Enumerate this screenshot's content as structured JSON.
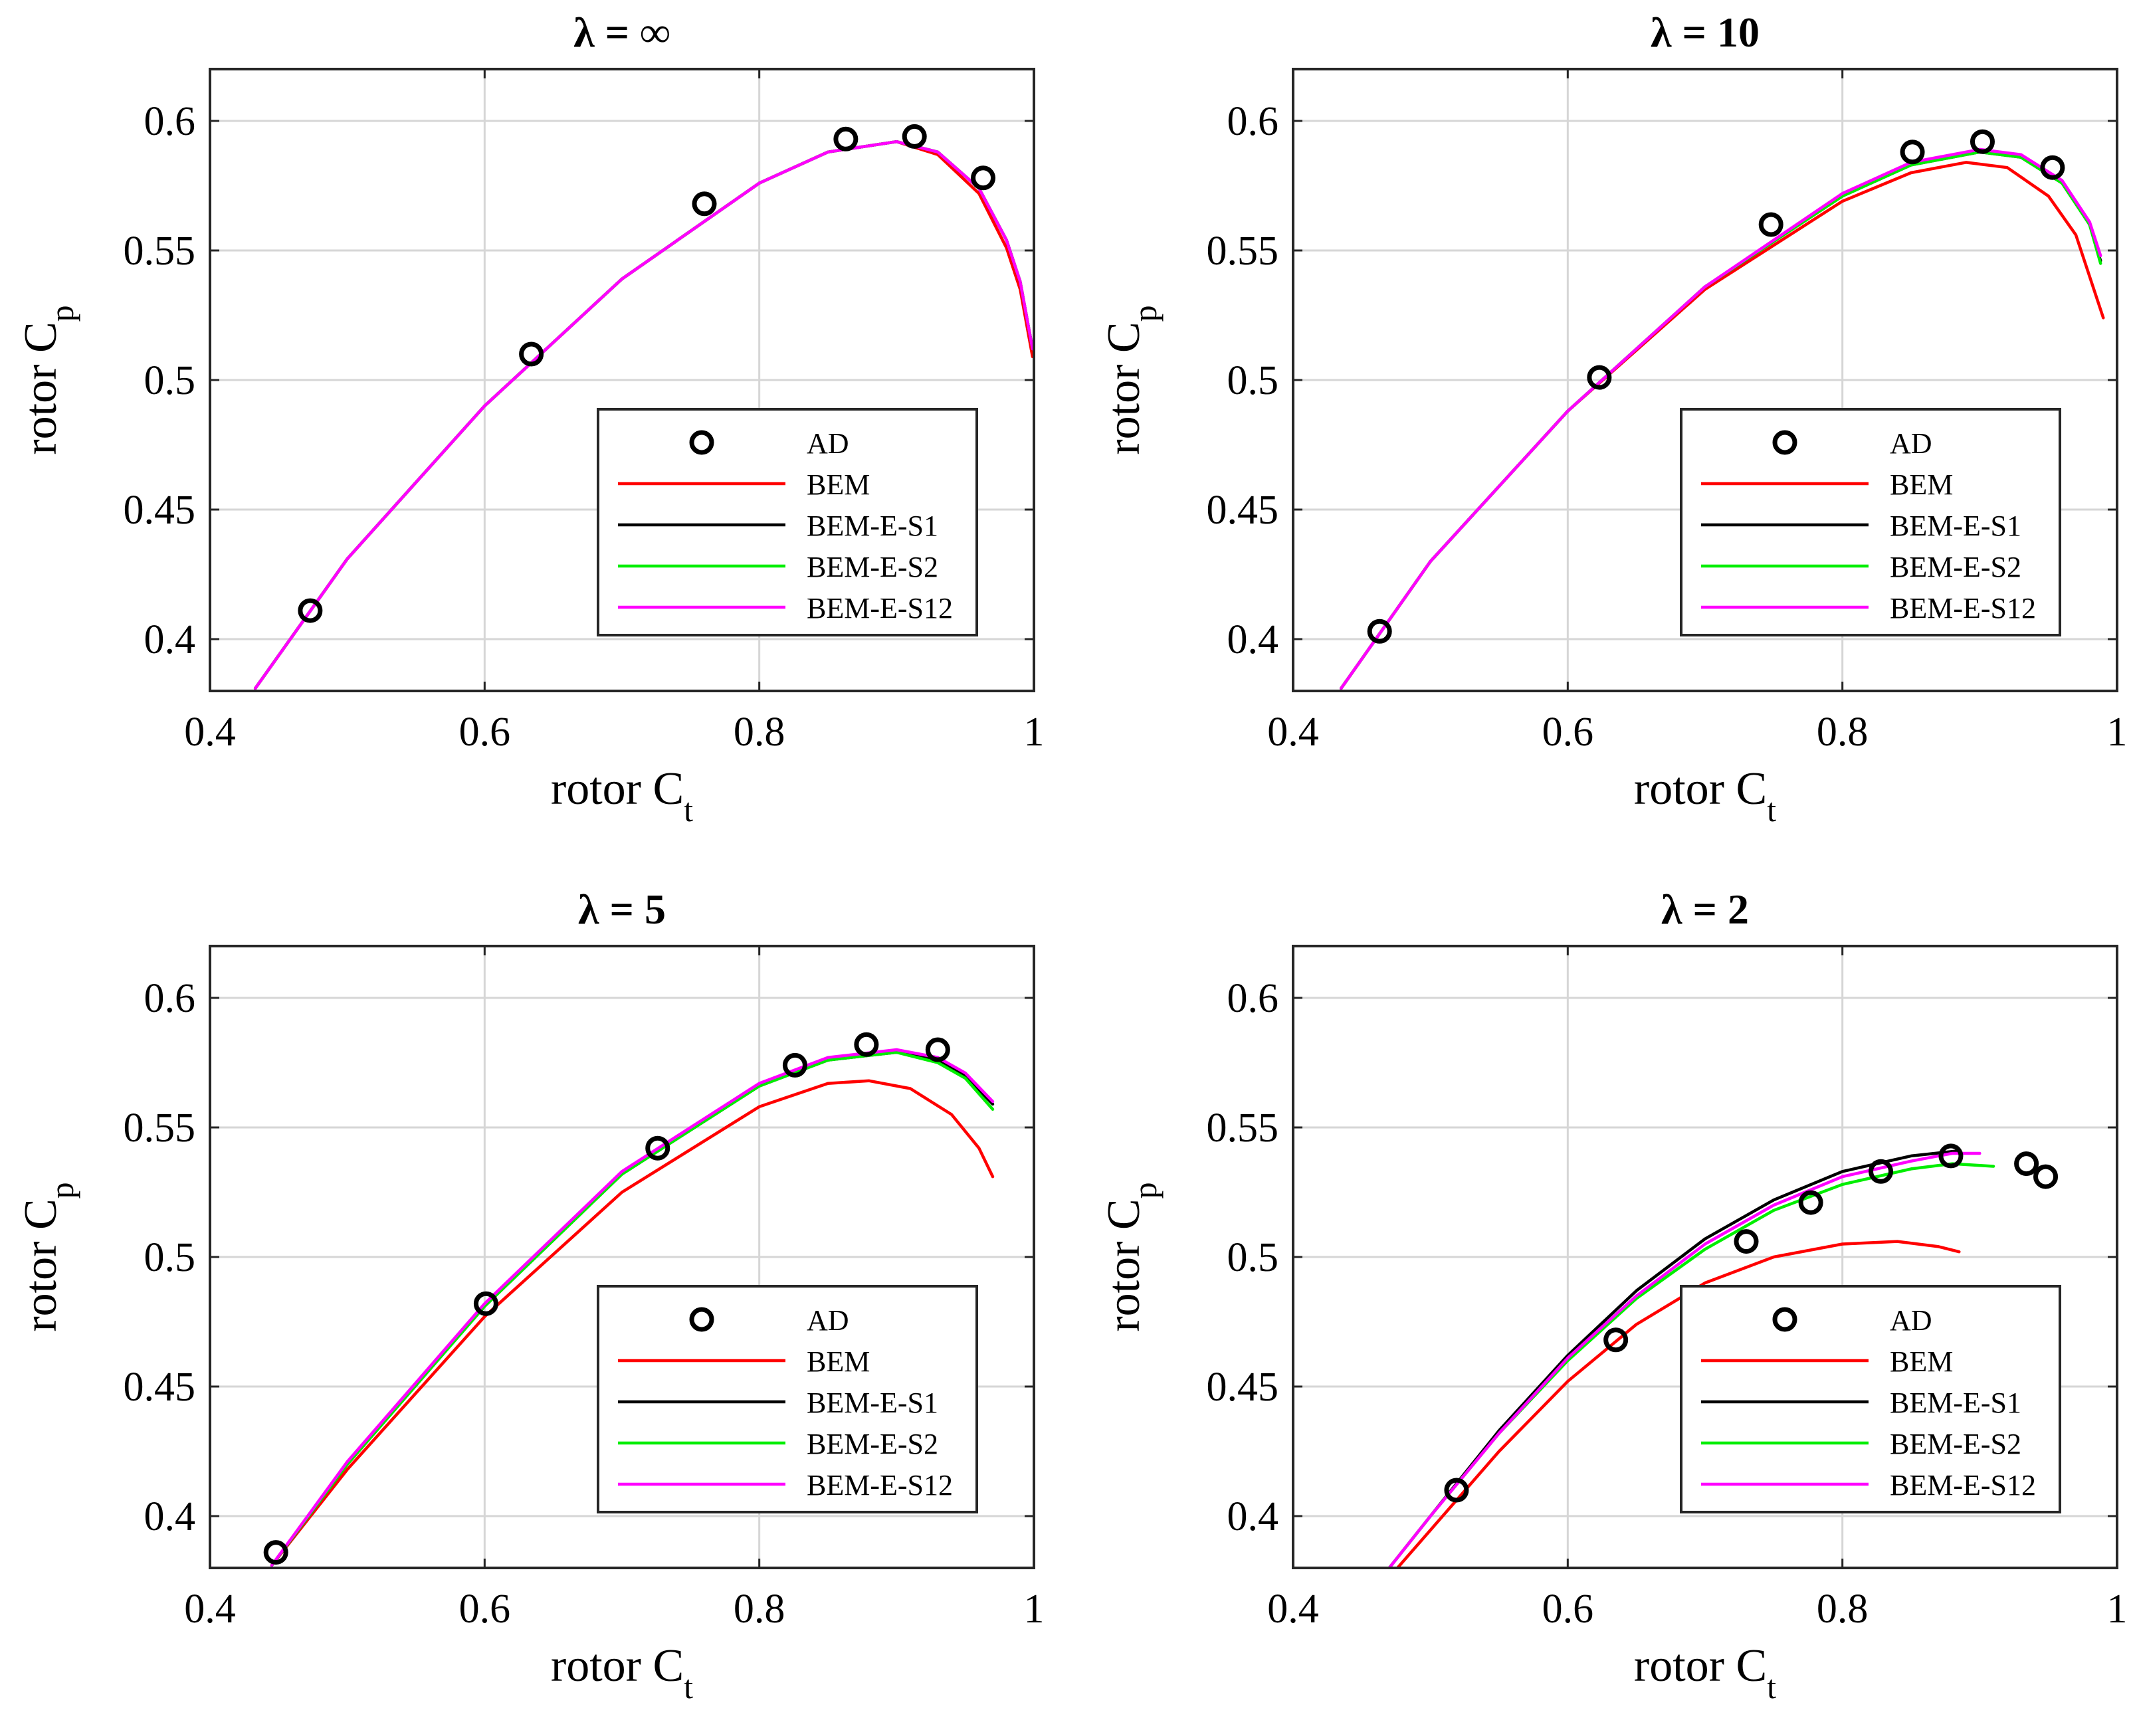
{
  "chart_data": [
    {
      "type": "line",
      "title": "λ = ∞",
      "xlabel": "rotor C",
      "xlabel_sub": "t",
      "ylabel": "rotor C",
      "ylabel_sub": "p",
      "xlim": [
        0.4,
        1.0
      ],
      "ylim": [
        0.38,
        0.62
      ],
      "xticks": [
        "0.4",
        "0.6",
        "0.8",
        "1"
      ],
      "yticks": [
        "0.4",
        "0.45",
        "0.5",
        "0.55",
        "0.6"
      ],
      "grid": true,
      "legend_position": "lower-right",
      "series": [
        {
          "name": "AD",
          "style": "marker",
          "color": "#000000",
          "x": [
            0.473,
            0.634,
            0.76,
            0.863,
            0.913,
            0.963
          ],
          "y": [
            0.411,
            0.51,
            0.568,
            0.593,
            0.594,
            0.578
          ]
        },
        {
          "name": "BEM",
          "style": "line",
          "color": "#ff0000",
          "x": [
            0.433,
            0.5,
            0.6,
            0.7,
            0.8,
            0.85,
            0.9,
            0.93,
            0.96,
            0.98,
            0.99,
            0.999
          ],
          "y": [
            0.381,
            0.431,
            0.49,
            0.539,
            0.576,
            0.588,
            0.592,
            0.587,
            0.572,
            0.551,
            0.535,
            0.509
          ]
        },
        {
          "name": "BEM-E-S1",
          "style": "line",
          "color": "#000000",
          "x": [
            0.433,
            0.5,
            0.6,
            0.7,
            0.8,
            0.85,
            0.9,
            0.93,
            0.96,
            0.98,
            0.99,
            0.999
          ],
          "y": [
            0.381,
            0.431,
            0.49,
            0.539,
            0.576,
            0.588,
            0.592,
            0.588,
            0.574,
            0.554,
            0.538,
            0.512
          ]
        },
        {
          "name": "BEM-E-S2",
          "style": "line",
          "color": "#00ee00",
          "x": [
            0.433,
            0.5,
            0.6,
            0.7,
            0.8,
            0.85,
            0.9,
            0.93,
            0.96,
            0.98,
            0.99,
            0.999
          ],
          "y": [
            0.381,
            0.431,
            0.49,
            0.539,
            0.576,
            0.588,
            0.592,
            0.588,
            0.574,
            0.554,
            0.538,
            0.512
          ]
        },
        {
          "name": "BEM-E-S12",
          "style": "line",
          "color": "#ff00ff",
          "x": [
            0.433,
            0.5,
            0.6,
            0.7,
            0.8,
            0.85,
            0.9,
            0.93,
            0.96,
            0.98,
            0.99,
            0.999
          ],
          "y": [
            0.381,
            0.431,
            0.49,
            0.539,
            0.576,
            0.588,
            0.592,
            0.588,
            0.574,
            0.554,
            0.538,
            0.512
          ]
        }
      ]
    },
    {
      "type": "line",
      "title": "λ = 10",
      "xlabel": "rotor C",
      "xlabel_sub": "t",
      "ylabel": "rotor C",
      "ylabel_sub": "p",
      "xlim": [
        0.4,
        1.0
      ],
      "ylim": [
        0.38,
        0.62
      ],
      "xticks": [
        "0.4",
        "0.6",
        "0.8",
        "1"
      ],
      "yticks": [
        "0.4",
        "0.45",
        "0.5",
        "0.55",
        "0.6"
      ],
      "grid": true,
      "legend_position": "lower-right",
      "series": [
        {
          "name": "AD",
          "style": "marker",
          "color": "#000000",
          "x": [
            0.463,
            0.623,
            0.748,
            0.851,
            0.902,
            0.953
          ],
          "y": [
            0.403,
            0.501,
            0.56,
            0.588,
            0.592,
            0.582
          ]
        },
        {
          "name": "BEM",
          "style": "line",
          "color": "#ff0000",
          "x": [
            0.435,
            0.5,
            0.6,
            0.7,
            0.8,
            0.85,
            0.89,
            0.92,
            0.95,
            0.97,
            0.99
          ],
          "y": [
            0.381,
            0.43,
            0.488,
            0.535,
            0.569,
            0.58,
            0.584,
            0.582,
            0.571,
            0.556,
            0.524
          ]
        },
        {
          "name": "BEM-E-S1",
          "style": "line",
          "color": "#000000",
          "x": [
            0.435,
            0.5,
            0.6,
            0.7,
            0.8,
            0.85,
            0.9,
            0.93,
            0.96,
            0.98,
            0.988
          ],
          "y": [
            0.381,
            0.43,
            0.488,
            0.536,
            0.571,
            0.583,
            0.588,
            0.586,
            0.576,
            0.56,
            0.546
          ]
        },
        {
          "name": "BEM-E-S2",
          "style": "line",
          "color": "#00ee00",
          "x": [
            0.435,
            0.5,
            0.6,
            0.7,
            0.8,
            0.85,
            0.9,
            0.93,
            0.96,
            0.98,
            0.988
          ],
          "y": [
            0.381,
            0.43,
            0.488,
            0.536,
            0.571,
            0.583,
            0.588,
            0.586,
            0.576,
            0.56,
            0.545
          ]
        },
        {
          "name": "BEM-E-S12",
          "style": "line",
          "color": "#ff00ff",
          "x": [
            0.435,
            0.5,
            0.6,
            0.7,
            0.8,
            0.85,
            0.9,
            0.93,
            0.96,
            0.98,
            0.988
          ],
          "y": [
            0.381,
            0.43,
            0.488,
            0.536,
            0.572,
            0.584,
            0.589,
            0.587,
            0.577,
            0.561,
            0.548
          ]
        }
      ]
    },
    {
      "type": "line",
      "title": "λ = 5",
      "xlabel": "rotor C",
      "xlabel_sub": "t",
      "ylabel": "rotor C",
      "ylabel_sub": "p",
      "xlim": [
        0.4,
        1.0
      ],
      "ylim": [
        0.38,
        0.62
      ],
      "xticks": [
        "0.4",
        "0.6",
        "0.8",
        "1"
      ],
      "yticks": [
        "0.4",
        "0.45",
        "0.5",
        "0.55",
        "0.6"
      ],
      "grid": true,
      "legend_position": "lower-right",
      "series": [
        {
          "name": "AD",
          "style": "marker",
          "color": "#000000",
          "x": [
            0.448,
            0.601,
            0.726,
            0.826,
            0.878,
            0.93
          ],
          "y": [
            0.386,
            0.482,
            0.542,
            0.574,
            0.582,
            0.58
          ]
        },
        {
          "name": "BEM",
          "style": "line",
          "color": "#ff0000",
          "x": [
            0.445,
            0.5,
            0.6,
            0.7,
            0.8,
            0.85,
            0.88,
            0.91,
            0.94,
            0.96,
            0.97
          ],
          "y": [
            0.381,
            0.418,
            0.477,
            0.525,
            0.558,
            0.567,
            0.568,
            0.565,
            0.555,
            0.542,
            0.531
          ]
        },
        {
          "name": "BEM-E-S1",
          "style": "line",
          "color": "#000000",
          "x": [
            0.445,
            0.5,
            0.6,
            0.7,
            0.8,
            0.85,
            0.9,
            0.93,
            0.95,
            0.97
          ],
          "y": [
            0.381,
            0.42,
            0.481,
            0.532,
            0.566,
            0.576,
            0.579,
            0.576,
            0.57,
            0.559
          ]
        },
        {
          "name": "BEM-E-S2",
          "style": "line",
          "color": "#00ee00",
          "x": [
            0.445,
            0.5,
            0.6,
            0.7,
            0.8,
            0.85,
            0.9,
            0.93,
            0.95,
            0.97
          ],
          "y": [
            0.381,
            0.42,
            0.481,
            0.532,
            0.566,
            0.576,
            0.579,
            0.575,
            0.569,
            0.557
          ]
        },
        {
          "name": "BEM-E-S12",
          "style": "line",
          "color": "#ff00ff",
          "x": [
            0.445,
            0.5,
            0.6,
            0.7,
            0.8,
            0.85,
            0.9,
            0.93,
            0.95,
            0.97
          ],
          "y": [
            0.381,
            0.421,
            0.482,
            0.533,
            0.567,
            0.577,
            0.58,
            0.577,
            0.571,
            0.56
          ]
        }
      ]
    },
    {
      "type": "line",
      "title": "λ = 2",
      "xlabel": "rotor C",
      "xlabel_sub": "t",
      "ylabel": "rotor C",
      "ylabel_sub": "p",
      "xlim": [
        0.4,
        1.0
      ],
      "ylim": [
        0.38,
        0.62
      ],
      "xticks": [
        "0.4",
        "0.6",
        "0.8",
        "1"
      ],
      "yticks": [
        "0.4",
        "0.45",
        "0.5",
        "0.55",
        "0.6"
      ],
      "grid": true,
      "legend_position": "lower-right",
      "series": [
        {
          "name": "AD",
          "style": "marker",
          "color": "#000000",
          "x": [
            0.519,
            0.635,
            0.73,
            0.777,
            0.828,
            0.879,
            0.934,
            0.948
          ],
          "y": [
            0.41,
            0.468,
            0.506,
            0.521,
            0.533,
            0.539,
            0.536,
            0.531
          ]
        },
        {
          "name": "BEM",
          "style": "line",
          "color": "#ff0000",
          "x": [
            0.476,
            0.55,
            0.6,
            0.65,
            0.7,
            0.75,
            0.8,
            0.84,
            0.87,
            0.885
          ],
          "y": [
            0.38,
            0.425,
            0.452,
            0.474,
            0.49,
            0.5,
            0.505,
            0.506,
            0.504,
            0.502
          ]
        },
        {
          "name": "BEM-E-S1",
          "style": "line",
          "color": "#000000",
          "x": [
            0.47,
            0.5,
            0.55,
            0.6,
            0.65,
            0.7,
            0.75,
            0.8,
            0.85,
            0.885
          ],
          "y": [
            0.38,
            0.4,
            0.433,
            0.462,
            0.487,
            0.507,
            0.522,
            0.533,
            0.539,
            0.541
          ]
        },
        {
          "name": "BEM-E-S2",
          "style": "line",
          "color": "#00ee00",
          "x": [
            0.47,
            0.5,
            0.55,
            0.6,
            0.65,
            0.7,
            0.75,
            0.8,
            0.85,
            0.88,
            0.91
          ],
          "y": [
            0.38,
            0.4,
            0.432,
            0.46,
            0.484,
            0.503,
            0.518,
            0.528,
            0.534,
            0.536,
            0.535
          ]
        },
        {
          "name": "BEM-E-S12",
          "style": "line",
          "color": "#ff00ff",
          "x": [
            0.47,
            0.5,
            0.55,
            0.6,
            0.65,
            0.7,
            0.75,
            0.8,
            0.85,
            0.88,
            0.9
          ],
          "y": [
            0.38,
            0.4,
            0.432,
            0.461,
            0.485,
            0.505,
            0.52,
            0.531,
            0.537,
            0.54,
            0.54
          ]
        }
      ]
    }
  ]
}
